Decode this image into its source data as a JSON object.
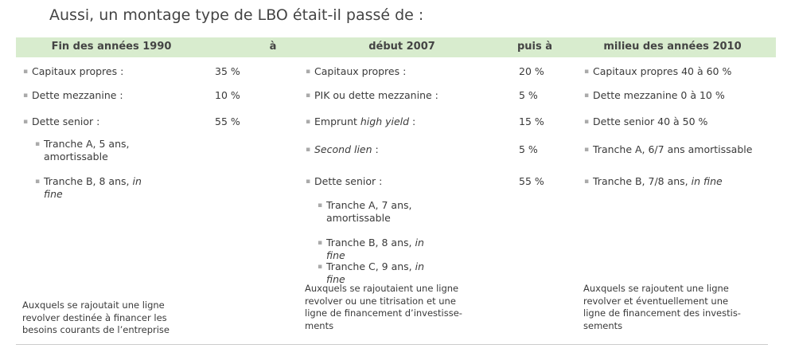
{
  "title": "Aussi, un montage type de LBO était-il passé de :",
  "header": [
    "Fin des années 1990",
    "à",
    "début 2007",
    "puis à",
    "milieu des années 2010"
  ],
  "columns": [
    {
      "items": [
        {
          "label": [
            {
              "text": "Capitaux propres :"
            }
          ],
          "value": "35 %"
        },
        {
          "label": [
            {
              "text": "Dette mezzanine :"
            }
          ],
          "value": "10 %"
        },
        {
          "label": [
            {
              "text": "Dette senior :"
            }
          ],
          "value": "55 %"
        },
        {
          "label": [
            {
              "text": "Tranche A, 5 ans, amortissable"
            }
          ],
          "sub": true
        },
        {
          "label": [
            {
              "text": "Tranche B, 8 ans, "
            },
            {
              "text": "in fine",
              "italic": true
            }
          ],
          "sub": true
        }
      ],
      "footnote": [
        "Auxquels se rajoutait une ligne",
        "revolver destinée à financer les",
        "besoins courants de l’entreprise"
      ]
    },
    {
      "items": [
        {
          "label": [
            {
              "text": "Capitaux propres :"
            }
          ],
          "value": "20 %"
        },
        {
          "label": [
            {
              "text": "PIK ou dette mezzanine :"
            }
          ],
          "value": "5 %"
        },
        {
          "label": [
            {
              "text": "Emprunt "
            },
            {
              "text": "high yield",
              "italic": true
            },
            {
              "text": " :"
            }
          ],
          "value": "15 %"
        },
        {
          "label": [
            {
              "text": "Second lien",
              "italic": true
            },
            {
              "text": " :"
            }
          ],
          "value": "5 %"
        },
        {
          "label": [
            {
              "text": "Dette senior :"
            }
          ],
          "value": "55 %"
        },
        {
          "label": [
            {
              "text": "Tranche A, 7 ans, amortissable"
            }
          ],
          "sub": true
        },
        {
          "label": [
            {
              "text": "Tranche B, 8 ans, "
            },
            {
              "text": "in fine",
              "italic": true
            }
          ],
          "sub": true
        },
        {
          "label": [
            {
              "text": "Tranche C, 9 ans, "
            },
            {
              "text": "in fine",
              "italic": true
            }
          ],
          "sub": true
        }
      ],
      "footnote": [
        "Auxquels se rajoutaient une ligne",
        "revolver ou une titrisation et une",
        "ligne de financement d’investisse-",
        "ments"
      ]
    },
    {
      "items": [
        {
          "label": [
            {
              "text": "Capitaux propres 40 à 60 %"
            }
          ]
        },
        {
          "label": [
            {
              "text": "Dette mezzanine 0 à 10 %"
            }
          ]
        },
        {
          "label": [
            {
              "text": "Dette senior 40 à 50 %"
            }
          ]
        },
        {
          "label": [
            {
              "text": "Tranche A, 6/7 ans amortissable"
            }
          ]
        },
        {
          "label": [
            {
              "text": "Tranche B, 7/8 ans, "
            },
            {
              "text": "in fine",
              "italic": true
            }
          ]
        }
      ],
      "footnote": [
        "Auxquels se rajoutent une ligne",
        "revolver et éventuellement une",
        "ligne de financement des investis-",
        "sements"
      ]
    }
  ]
}
